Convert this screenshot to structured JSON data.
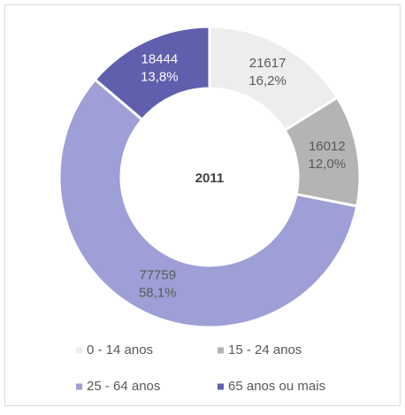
{
  "chart_data": {
    "type": "donut",
    "title": "2011",
    "categories": [
      "0 - 14 anos",
      "15 - 24 anos",
      "25 - 64 anos",
      "65 anos ou mais"
    ],
    "values": [
      21617,
      16012,
      77759,
      18444
    ],
    "percent_labels": [
      "16,2%",
      "12,0%",
      "58,1%",
      "13,8%"
    ],
    "colors": [
      "#ededed",
      "#b4b4b4",
      "#9e9fd6",
      "#5f5fad"
    ],
    "label_colors": [
      "#595959",
      "#595959",
      "#595959",
      "#ffffff"
    ],
    "legend": "bottom"
  }
}
